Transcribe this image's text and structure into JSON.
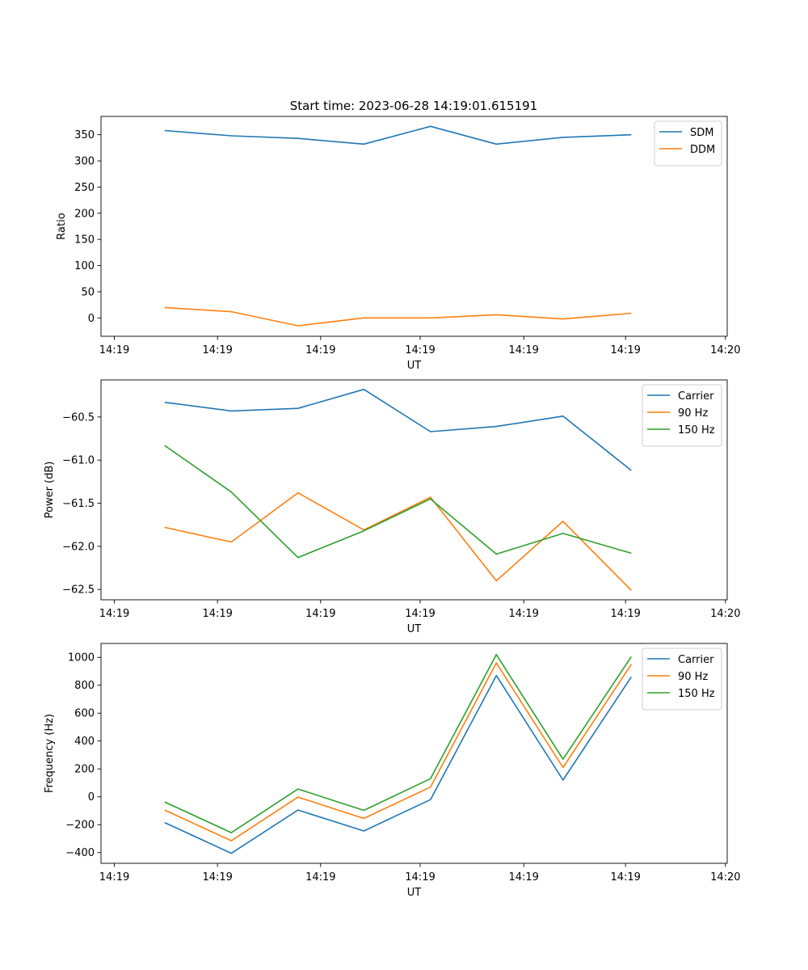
{
  "figure_title": "Start time: 2023-06-28 14:19:01.615191",
  "colors": {
    "blue": "#1f77b4",
    "orange": "#ff7f0e",
    "green": "#2ca02c"
  },
  "chart_data": [
    {
      "type": "line",
      "title": "Start time: 2023-06-28 14:19:01.615191",
      "xlabel": "UT",
      "ylabel": "Ratio",
      "legend_position": "top-right",
      "grid": false,
      "x_tick_labels": [
        "14:19",
        "14:19",
        "14:19",
        "14:19",
        "14:19",
        "14:19",
        "14:20"
      ],
      "y_ticks": [
        0,
        50,
        100,
        150,
        200,
        250,
        300,
        350
      ],
      "ylim": [
        -35,
        385
      ],
      "series": [
        {
          "name": "SDM",
          "color": "#1f77b4",
          "values": [
            358,
            348,
            343,
            332,
            366,
            332,
            345,
            350
          ]
        },
        {
          "name": "DDM",
          "color": "#ff7f0e",
          "values": [
            20,
            12,
            -15,
            0,
            0,
            6,
            -2,
            9
          ]
        }
      ]
    },
    {
      "type": "line",
      "title": "",
      "xlabel": "UT",
      "ylabel": "Power (dB)",
      "legend_position": "top-right",
      "grid": false,
      "x_tick_labels": [
        "14:19",
        "14:19",
        "14:19",
        "14:19",
        "14:19",
        "14:19",
        "14:20"
      ],
      "y_ticks": [
        -62.5,
        -62.0,
        -61.5,
        -61.0,
        -60.5
      ],
      "y_tick_labels": [
        "−62.5",
        "−62.0",
        "−61.5",
        "−61.0",
        "−60.5"
      ],
      "ylim": [
        -62.62,
        -60.07
      ],
      "series": [
        {
          "name": "Carrier",
          "color": "#1f77b4",
          "values": [
            -60.33,
            -60.43,
            -60.4,
            -60.18,
            -60.67,
            -60.61,
            -60.49,
            -61.12
          ]
        },
        {
          "name": "90 Hz",
          "color": "#ff7f0e",
          "values": [
            -61.78,
            -61.95,
            -61.38,
            -61.81,
            -61.43,
            -62.4,
            -61.71,
            -62.51
          ]
        },
        {
          "name": "150 Hz",
          "color": "#2ca02c",
          "values": [
            -60.83,
            -61.37,
            -62.13,
            -61.82,
            -61.45,
            -62.09,
            -61.85,
            -62.08
          ]
        }
      ]
    },
    {
      "type": "line",
      "title": "",
      "xlabel": "UT",
      "ylabel": "Frequency (Hz)",
      "legend_position": "top-right",
      "grid": false,
      "x_tick_labels": [
        "14:19",
        "14:19",
        "14:19",
        "14:19",
        "14:19",
        "14:19",
        "14:20"
      ],
      "y_ticks": [
        -400,
        -200,
        0,
        200,
        400,
        600,
        800,
        1000
      ],
      "y_tick_labels": [
        "−400",
        "−200",
        "0",
        "200",
        "400",
        "600",
        "800",
        "1000"
      ],
      "ylim": [
        -477,
        1100
      ],
      "series": [
        {
          "name": "Carrier",
          "color": "#1f77b4",
          "values": [
            -185,
            -405,
            -95,
            -245,
            -20,
            870,
            120,
            860
          ]
        },
        {
          "name": "90 Hz",
          "color": "#ff7f0e",
          "values": [
            -95,
            -315,
            -2,
            -155,
            70,
            960,
            210,
            950
          ]
        },
        {
          "name": "150 Hz",
          "color": "#2ca02c",
          "values": [
            -37,
            -257,
            56,
            -97,
            130,
            1020,
            270,
            1005
          ]
        }
      ]
    }
  ]
}
